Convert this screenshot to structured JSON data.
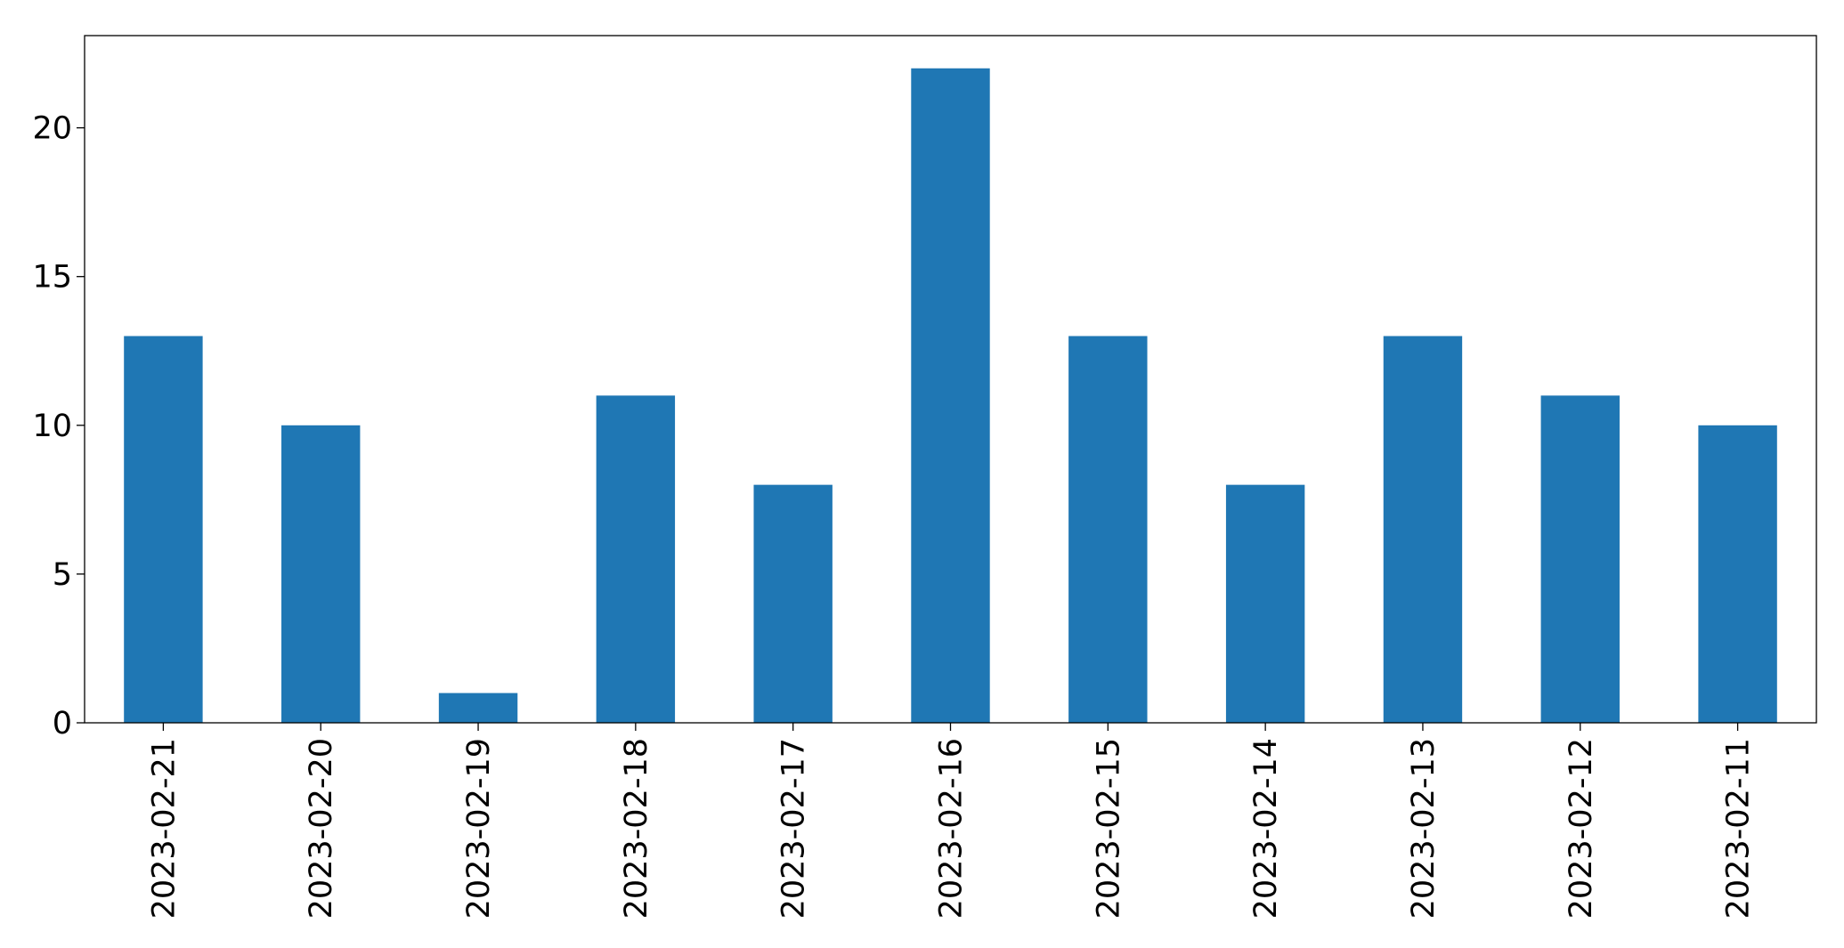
{
  "chart_data": {
    "type": "bar",
    "title": "",
    "xlabel": "",
    "ylabel": "",
    "categories": [
      "2023-02-21",
      "2023-02-20",
      "2023-02-19",
      "2023-02-18",
      "2023-02-17",
      "2023-02-16",
      "2023-02-15",
      "2023-02-14",
      "2023-02-13",
      "2023-02-12",
      "2023-02-11"
    ],
    "values": [
      13,
      10,
      1,
      11,
      8,
      22,
      13,
      8,
      13,
      11,
      10
    ],
    "ylim": [
      0,
      23.1
    ],
    "yticks": [
      0,
      5,
      10,
      15,
      20
    ],
    "bar_color": "#1f77b4",
    "grid": false,
    "legend": "none"
  }
}
